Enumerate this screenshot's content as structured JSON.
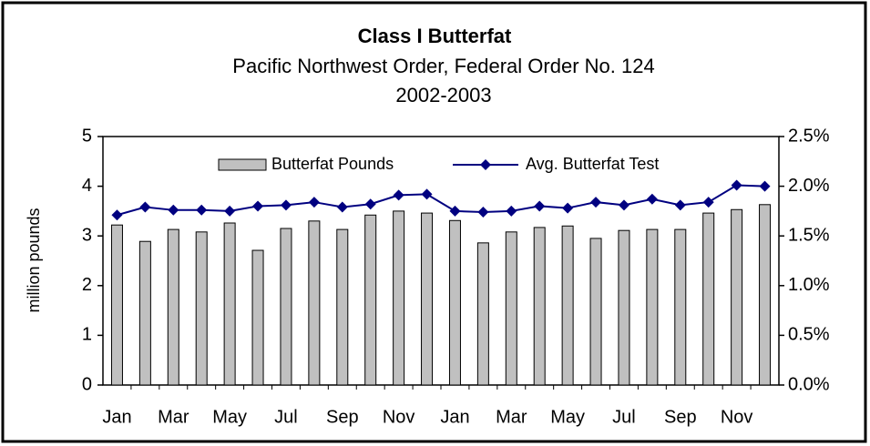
{
  "chart_data": {
    "type": "bar",
    "title": "Class I Butterfat",
    "subtitle": [
      "Pacific Northwest Order, Federal Order No. 124",
      "2002-2003"
    ],
    "ylabel": "million pounds",
    "categories": [
      "Jan",
      null,
      "Mar",
      null,
      "May",
      null,
      "Jul",
      null,
      "Sep",
      null,
      "Nov",
      null,
      "Jan",
      null,
      "Mar",
      null,
      "May",
      null,
      "Jul",
      null,
      "Sep",
      null,
      "Nov",
      null
    ],
    "series": [
      {
        "name": "Butterfat Pounds",
        "type": "bar",
        "color": "#c0c0c0",
        "values": [
          3.22,
          2.89,
          3.13,
          3.08,
          3.26,
          2.71,
          3.15,
          3.3,
          3.13,
          3.42,
          3.5,
          3.46,
          3.31,
          2.86,
          3.08,
          3.17,
          3.2,
          2.95,
          3.11,
          3.13,
          3.13,
          3.46,
          3.53,
          3.63
        ]
      },
      {
        "name": "Avg. Butterfat Test",
        "type": "line",
        "axis": "y2",
        "color": "#000080",
        "values": [
          1.71,
          1.79,
          1.76,
          1.76,
          1.75,
          1.8,
          1.81,
          1.84,
          1.79,
          1.82,
          1.91,
          1.92,
          1.75,
          1.74,
          1.75,
          1.8,
          1.78,
          1.84,
          1.81,
          1.87,
          1.81,
          1.84,
          2.01,
          2.0
        ]
      }
    ],
    "ylim": [
      0,
      5
    ],
    "yticks": [
      0,
      1,
      2,
      3,
      4,
      5
    ],
    "y2lim": [
      0,
      2.5
    ],
    "y2ticks": [
      {
        "value": 0,
        "label": "0.0%"
      },
      {
        "value": 0.5,
        "label": "0.5%"
      },
      {
        "value": 1,
        "label": "1.0%"
      },
      {
        "value": 1.5,
        "label": "1.5%"
      },
      {
        "value": 2,
        "label": "2.0%"
      },
      {
        "value": 2.5,
        "label": "2.5%"
      }
    ],
    "legend": "top",
    "grid": false
  }
}
